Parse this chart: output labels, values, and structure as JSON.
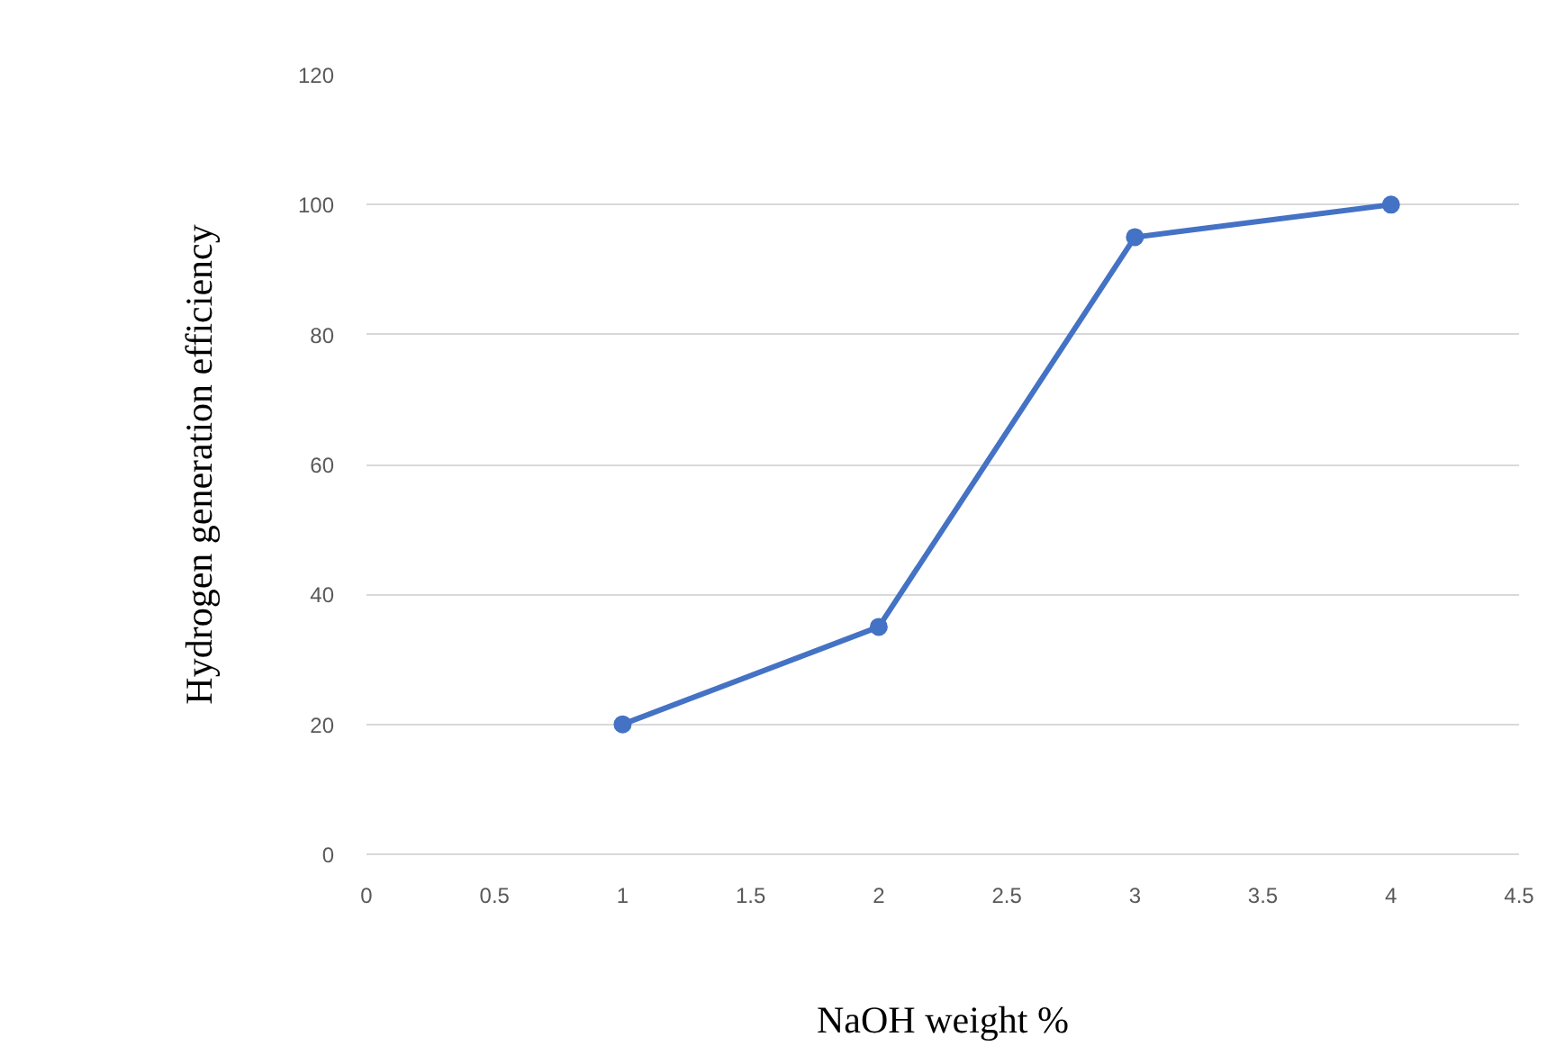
{
  "chart_data": {
    "type": "line",
    "xlabel": "NaOH weight %",
    "ylabel": "Hydrogen generation efficiency",
    "x": [
      1,
      2,
      3,
      4
    ],
    "series": [
      {
        "color": "#4472c4",
        "values": [
          20,
          35,
          95,
          100
        ]
      }
    ],
    "xlim": [
      0,
      4.5
    ],
    "xticks": [
      0,
      0.5,
      1,
      1.5,
      2,
      2.5,
      3,
      3.5,
      4,
      4.5
    ],
    "ylim": [
      0,
      120
    ],
    "yticks": [
      0,
      20,
      40,
      60,
      80,
      100,
      120
    ],
    "grid": "y",
    "marker": "circle",
    "line_style": "solid"
  }
}
